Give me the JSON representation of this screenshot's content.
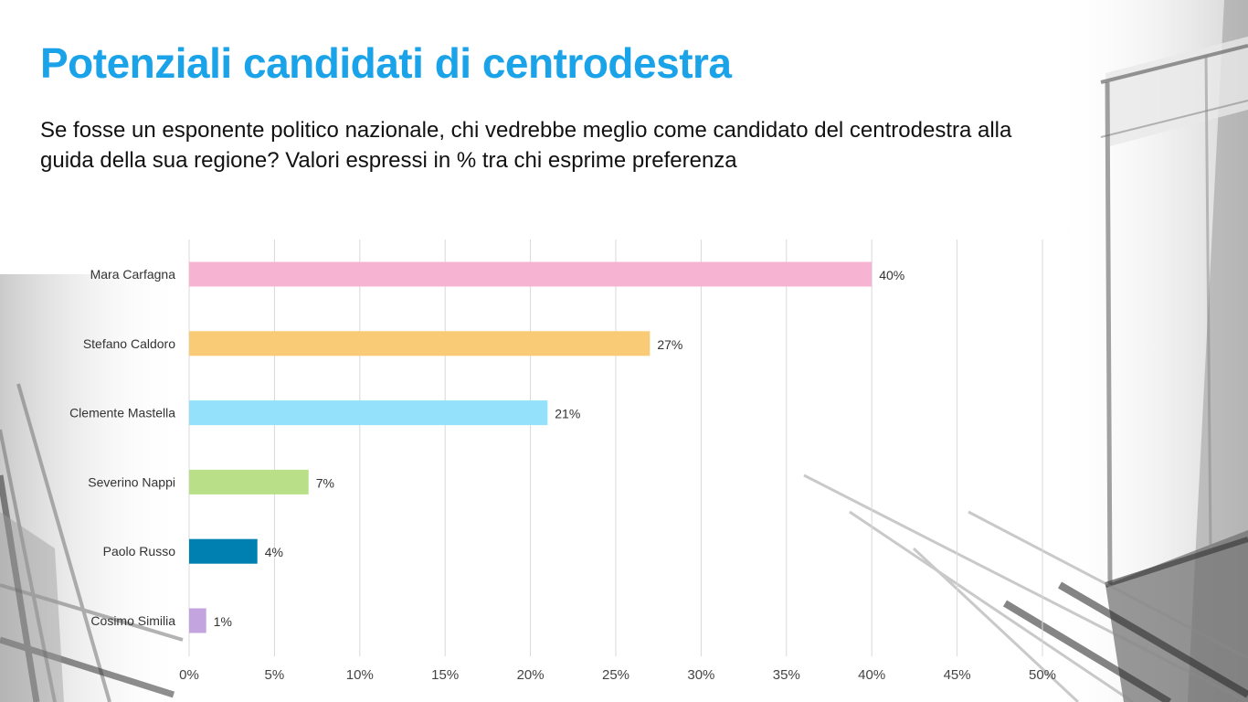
{
  "header": {
    "title": "Potenziali candidati di centrodestra",
    "subtitle": "Se fosse un esponente politico nazionale, chi vedrebbe meglio come candidato del centrodestra alla guida della sua regione?  Valori espressi in % tra chi esprime preferenza"
  },
  "chart_data": {
    "type": "bar",
    "orientation": "horizontal",
    "categories": [
      "Mara Carfagna",
      "Stefano Caldoro",
      "Clemente Mastella",
      "Severino Nappi",
      "Paolo Russo",
      "Cosimo Similia"
    ],
    "values": [
      40,
      27,
      21,
      7,
      4,
      1
    ],
    "value_labels": [
      "40%",
      "27%",
      "21%",
      "7%",
      "4%",
      "1%"
    ],
    "colors": [
      "#f7b3d2",
      "#f9cb77",
      "#93e1fb",
      "#b9e089",
      "#0080b0",
      "#c3a4de"
    ],
    "xlim": [
      0,
      50
    ],
    "x_ticks": [
      0,
      5,
      10,
      15,
      20,
      25,
      30,
      35,
      40,
      45,
      50
    ],
    "x_tick_labels": [
      "0%",
      "5%",
      "10%",
      "15%",
      "20%",
      "25%",
      "30%",
      "35%",
      "40%",
      "45%",
      "50%"
    ],
    "grid": true,
    "legend": "none"
  },
  "theme": {
    "title_color": "#1aa3e8",
    "grid_color": "#d9d9d9"
  }
}
